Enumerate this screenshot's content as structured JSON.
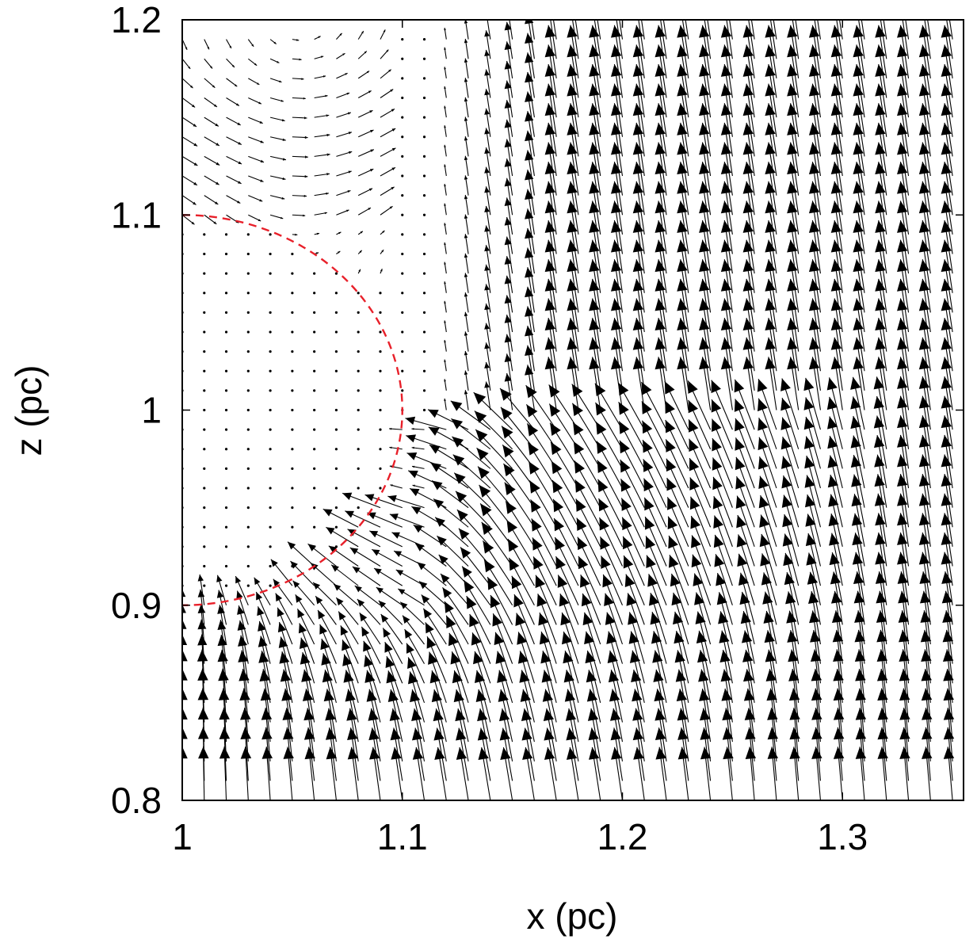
{
  "chart_data": {
    "type": "vector-field",
    "xlabel": "x (pc)",
    "ylabel": "z (pc)",
    "xlim": [
      1.0,
      1.355
    ],
    "ylim": [
      0.8,
      1.2
    ],
    "x_ticks": [
      1.0,
      1.1,
      1.2,
      1.3
    ],
    "x_tick_labels": [
      "1",
      "1.1",
      "1.2",
      "1.3"
    ],
    "y_ticks": [
      0.8,
      0.9,
      1.0,
      1.1,
      1.2
    ],
    "y_tick_labels": [
      "0.8",
      "0.9",
      "1",
      "1.1",
      "1.2"
    ],
    "grid": false,
    "legend": "none",
    "field": {
      "grid_x_start": 1.0,
      "grid_x_step": 0.01,
      "grid_x_count": 36,
      "grid_z_start": 0.8,
      "grid_z_step": 0.01,
      "grid_z_count": 41,
      "description": "flow vectors; near-zero inside circle, strong upward flow at larger x, inflow toward circle below it"
    },
    "boundary_circle": {
      "center_x": 1.0,
      "center_z": 1.0,
      "radius": 0.1,
      "style": "dashed",
      "color": "#e8202a"
    },
    "colors": {
      "arrows": "#000000",
      "circle": "#e8202a",
      "axes": "#000000"
    }
  }
}
